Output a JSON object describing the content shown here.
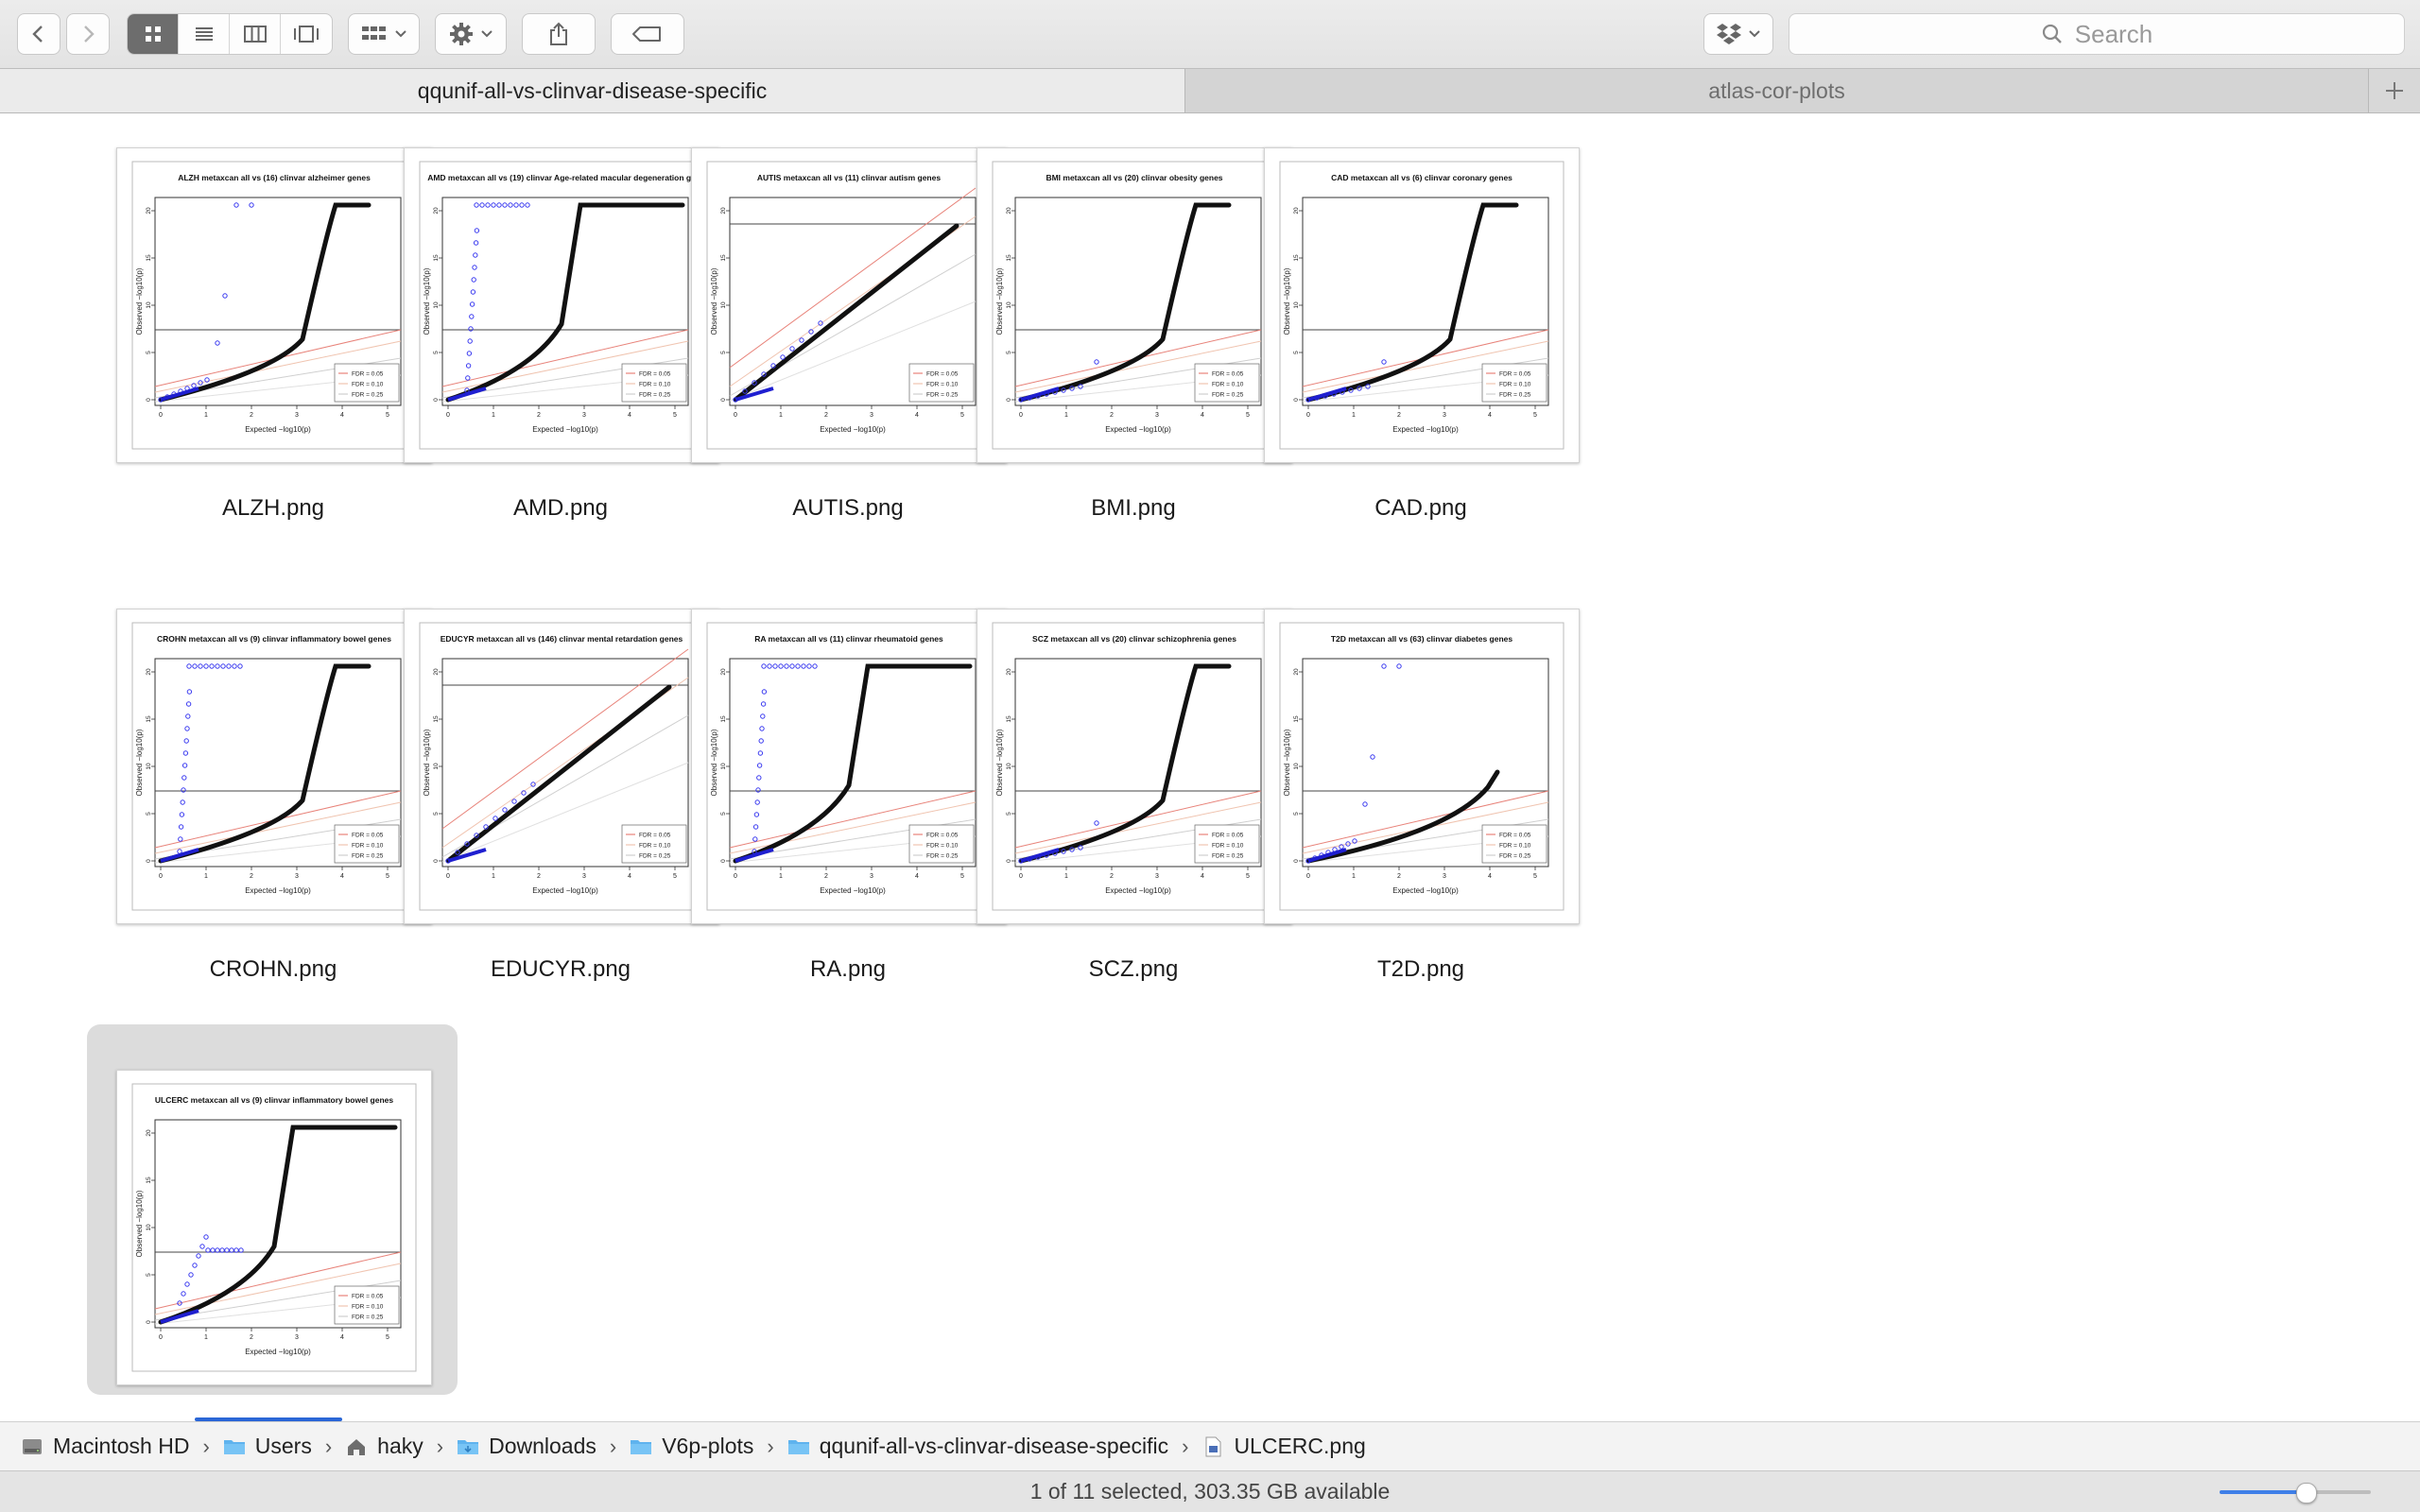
{
  "toolbar": {
    "search_placeholder": "Search"
  },
  "tabs": [
    {
      "label": "qqunif-all-vs-clinvar-disease-specific",
      "active": true
    },
    {
      "label": "atlas-cor-plots",
      "active": false
    }
  ],
  "files": [
    {
      "name": "ALZH.png",
      "plot_title": "ALZH metaxcan all vs (16) clinvar alzheimer genes",
      "shape": "convex",
      "blue": "scattered"
    },
    {
      "name": "AMD.png",
      "plot_title": "AMD metaxcan all vs (19) clinvar Age-related macular degeneration ge",
      "shape": "step",
      "blue": "vertical"
    },
    {
      "name": "AUTIS.png",
      "plot_title": "AUTIS metaxcan all vs (11) clinvar autism genes",
      "shape": "diagonal",
      "blue": "diag"
    },
    {
      "name": "BMI.png",
      "plot_title": "BMI metaxcan all vs (20) clinvar obesity genes",
      "shape": "convex",
      "blue": "low"
    },
    {
      "name": "CAD.png",
      "plot_title": "CAD metaxcan all vs (6) clinvar coronary genes",
      "shape": "convex",
      "blue": "low"
    },
    {
      "name": "CROHN.png",
      "plot_title": "CROHN metaxcan all vs (9) clinvar inflammatory bowel genes",
      "shape": "convex",
      "blue": "vertical"
    },
    {
      "name": "EDUCYR.png",
      "plot_title": "EDUCYR metaxcan all vs (146) clinvar mental retardation genes",
      "shape": "diagonal",
      "blue": "diag"
    },
    {
      "name": "RA.png",
      "plot_title": "RA metaxcan all vs (11) clinvar rheumatoid genes",
      "shape": "step",
      "blue": "vertical"
    },
    {
      "name": "SCZ.png",
      "plot_title": "SCZ metaxcan all vs (20) clinvar schizophrenia genes",
      "shape": "convex",
      "blue": "low"
    },
    {
      "name": "T2D.png",
      "plot_title": "T2D metaxcan all vs (63) clinvar diabetes genes",
      "shape": "mild",
      "blue": "scattered"
    },
    {
      "name": "ULCERC.png",
      "plot_title": "ULCERC metaxcan all vs (9) clinvar inflammatory bowel genes",
      "shape": "step",
      "blue": "plateau",
      "selected": true
    }
  ],
  "plot_labels": {
    "ylabel": "Observed −log10(p)",
    "xlabel": "Expected −log10(p)",
    "legend": [
      "FDR = 0.05",
      "FDR = 0.10",
      "FDR = 0.25"
    ]
  },
  "pathbar": [
    {
      "label": "Macintosh HD",
      "icon": "hard-drive-icon"
    },
    {
      "label": "Users",
      "icon": "folder-icon"
    },
    {
      "label": "haky",
      "icon": "home-icon"
    },
    {
      "label": "Downloads",
      "icon": "downloads-folder-icon"
    },
    {
      "label": "V6p-plots",
      "icon": "folder-icon"
    },
    {
      "label": "qqunif-all-vs-clinvar-disease-specific",
      "icon": "folder-icon"
    },
    {
      "label": "ULCERC.png",
      "icon": "image-file-icon"
    }
  ],
  "status": {
    "text": "1 of 11 selected, 303.35 GB available",
    "zoom_fraction": 0.57
  }
}
